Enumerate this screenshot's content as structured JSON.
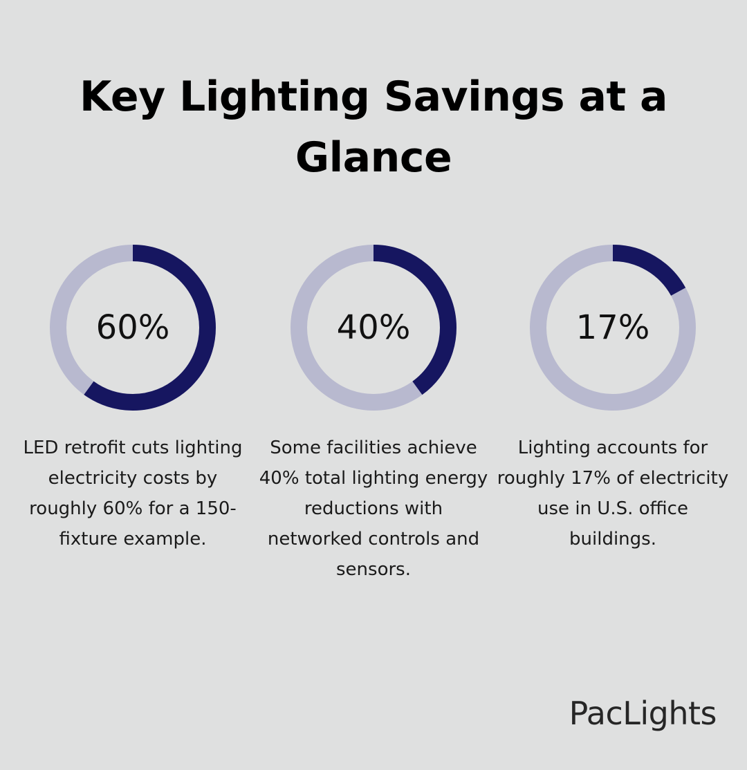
{
  "title": "Key Lighting Savings at a Glance",
  "colors": {
    "background": "#dfe0e0",
    "ring_fill": "#161660",
    "ring_track": "#b8b9cf"
  },
  "chart_data": {
    "type": "donut",
    "items": [
      {
        "value": 60,
        "label": "60%",
        "description": "LED retrofit cuts lighting electricity costs by roughly 60% for a 150-fixture example."
      },
      {
        "value": 40,
        "label": "40%",
        "description": "Some facilities achieve 40% total lighting energy reductions with networked controls and sensors."
      },
      {
        "value": 17,
        "label": "17%",
        "description": "Lighting accounts for roughly 17% of electricity use in U.S. office buildings."
      }
    ]
  },
  "brand": {
    "logo_text": "PacLights"
  }
}
